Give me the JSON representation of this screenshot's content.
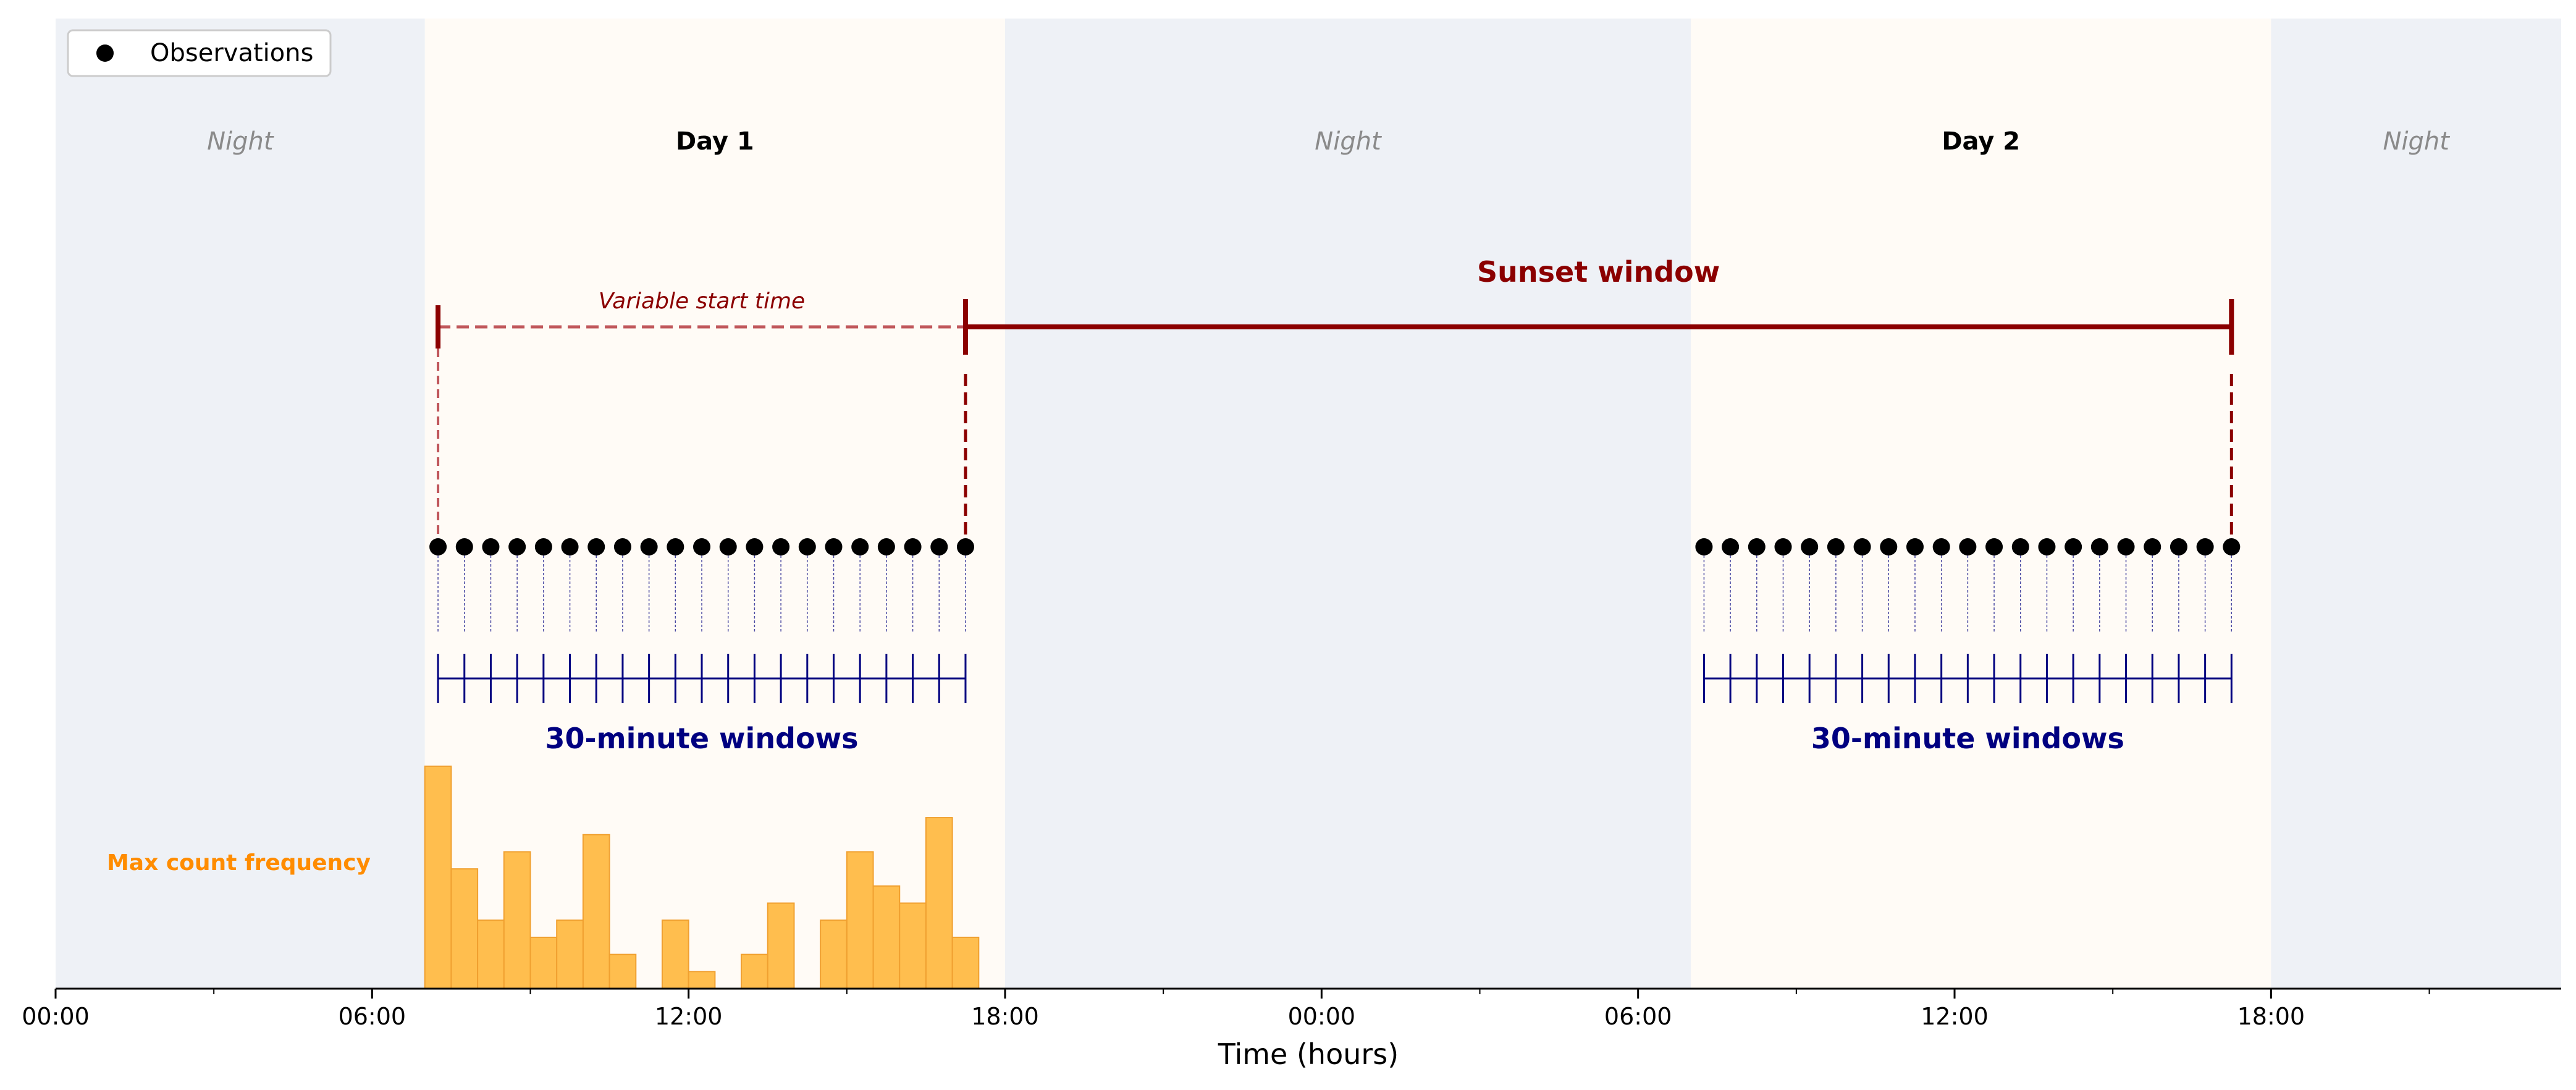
{
  "chart_data": {
    "type": "timeline",
    "xlabel": "Time (hours)",
    "x_unit": "hours",
    "xlim": [
      0,
      47.5
    ],
    "x_tick_labels": [
      "00:00",
      "06:00",
      "12:00",
      "18:00",
      "00:00",
      "06:00",
      "12:00",
      "18:00"
    ],
    "x_tick_hours": [
      0,
      6,
      12,
      18,
      24,
      30,
      36,
      42
    ],
    "legend": {
      "entries": [
        {
          "label": "Observations",
          "marker": "circle"
        }
      ],
      "placement": "upper-left"
    },
    "periods": [
      {
        "label": "Night",
        "start": 0,
        "end": 7,
        "kind": "night"
      },
      {
        "label": "Day 1",
        "start": 7,
        "end": 18,
        "kind": "day"
      },
      {
        "label": "Night",
        "start": 18,
        "end": 31,
        "kind": "night"
      },
      {
        "label": "Day 2",
        "start": 31,
        "end": 42,
        "kind": "day"
      },
      {
        "label": "Night",
        "start": 42,
        "end": 47.5,
        "kind": "night"
      }
    ],
    "sunset_window": {
      "label": "Sunset window",
      "start": 17.25,
      "end": 41.25
    },
    "variable_start": {
      "label": "Variable start time",
      "start": 7.25,
      "end": 17.25
    },
    "observations": [
      {
        "day": "Day 1",
        "start": 7.25,
        "end": 17.25,
        "step": 0.5
      },
      {
        "day": "Day 2",
        "start": 31.25,
        "end": 41.25,
        "step": 0.5
      }
    ],
    "window_label": "30-minute windows",
    "histogram": {
      "label": "Max count frequency",
      "bin_width": 0.5,
      "bin_starts": [
        7,
        7.5,
        8,
        8.5,
        9,
        9.5,
        10,
        10.5,
        11,
        11.5,
        12,
        12.5,
        13,
        13.5,
        14,
        14.5,
        15,
        15.5,
        16,
        16.5,
        17
      ],
      "values": [
        13,
        7,
        4,
        8,
        3,
        4,
        9,
        2,
        0,
        4,
        1,
        0,
        2,
        5,
        0,
        4,
        8,
        6,
        5,
        10,
        3
      ]
    }
  },
  "colors": {
    "night": "#eef1f6",
    "day": "#fffbf6",
    "sunset": "#8b0000",
    "sunset_dashed": "#c0575b",
    "windows": "#000080",
    "histogram_fill": "#ffbe4e",
    "histogram_edge": "#f0a030",
    "max_count_label": "#ff8c00",
    "night_label": "#8a8a8a",
    "observation": "#000000"
  }
}
